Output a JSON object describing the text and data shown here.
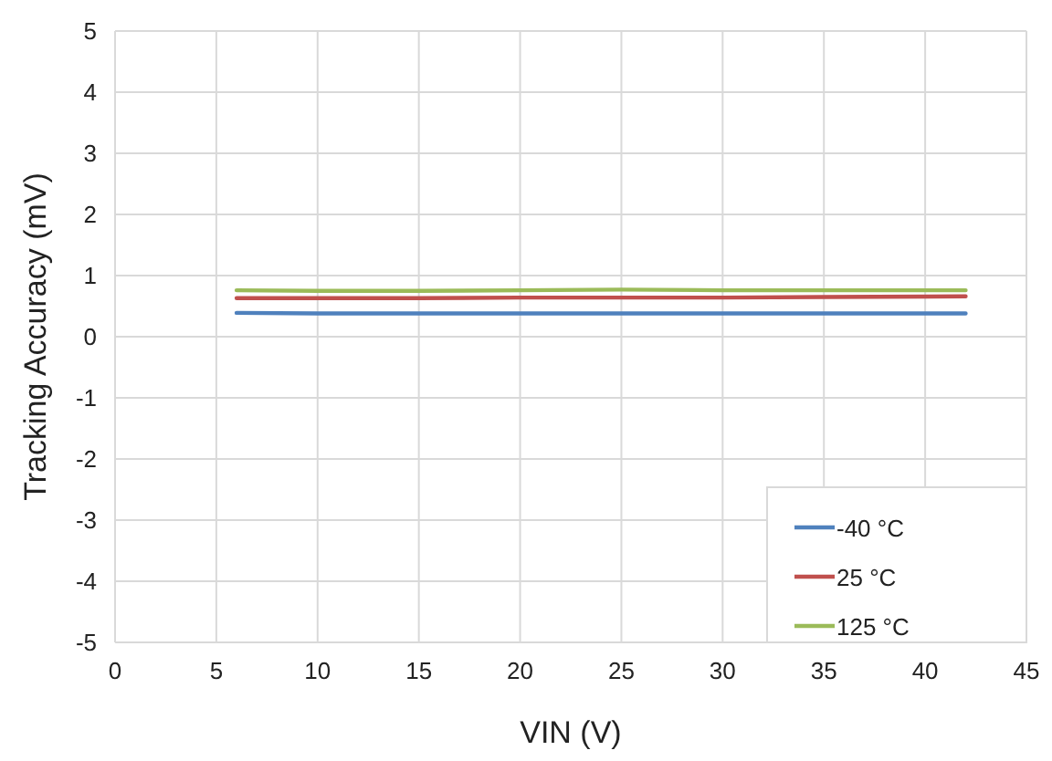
{
  "chart_data": {
    "type": "line",
    "xlabel": "VIN (V)",
    "ylabel": "Tracking Accuracy (mV)",
    "x": [
      6,
      10,
      15,
      20,
      25,
      30,
      35,
      42
    ],
    "series": [
      {
        "name": "-40 °C",
        "color": "#4f81bd",
        "values": [
          0.39,
          0.38,
          0.38,
          0.38,
          0.38,
          0.38,
          0.38,
          0.38
        ]
      },
      {
        "name": "25 °C",
        "color": "#c0504d",
        "values": [
          0.63,
          0.63,
          0.63,
          0.64,
          0.64,
          0.64,
          0.65,
          0.66
        ]
      },
      {
        "name": "125 °C",
        "color": "#9bbb59",
        "values": [
          0.76,
          0.75,
          0.75,
          0.76,
          0.77,
          0.76,
          0.76,
          0.76
        ]
      }
    ],
    "xlim": [
      0,
      45
    ],
    "xticks": [
      0,
      5,
      10,
      15,
      20,
      25,
      30,
      35,
      40,
      45
    ],
    "ylim": [
      -5,
      5
    ],
    "yticks": [
      -5,
      -4,
      -3,
      -2,
      -1,
      0,
      1,
      2,
      3,
      4,
      5
    ],
    "grid": true,
    "legend": "bottom right",
    "marker": "none",
    "line_style": "solid"
  }
}
